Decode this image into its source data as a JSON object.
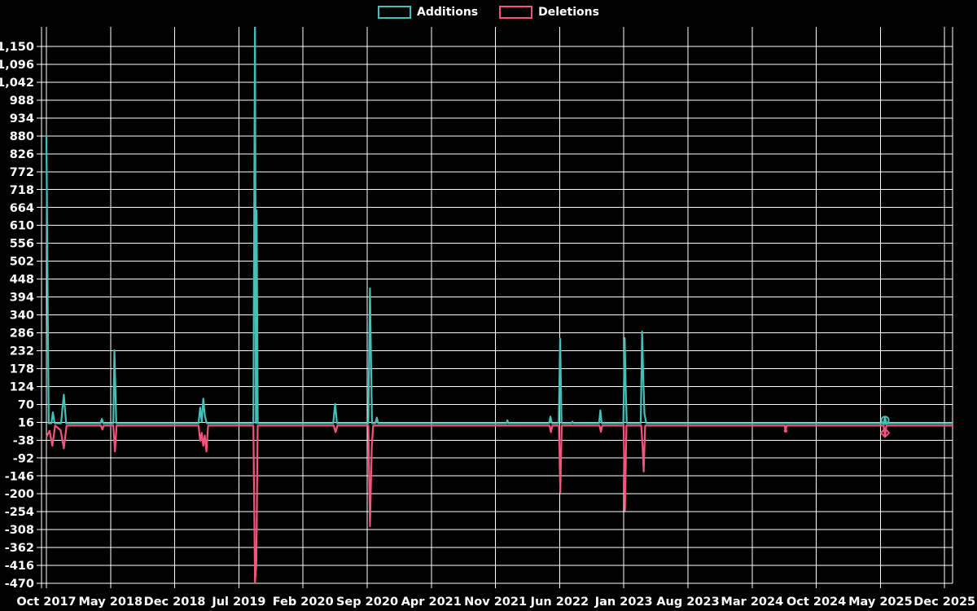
{
  "legend": {
    "items": [
      {
        "label": "Additions",
        "color": "#45c0b8"
      },
      {
        "label": "Deletions",
        "color": "#f4547d"
      }
    ]
  },
  "chart_data": {
    "type": "line",
    "title": "",
    "xlabel": "",
    "ylabel": "",
    "x_unit": "months since Oct 2017",
    "x_tick_labels": [
      "Oct 2017",
      "May 2018",
      "Dec 2018",
      "Jul 2019",
      "Feb 2020",
      "Sep 2020",
      "Apr 2021",
      "Nov 2021",
      "Jun 2022",
      "Jan 2023",
      "Aug 2023",
      "Mar 2024",
      "Oct 2024",
      "May 2025",
      "Dec 2025"
    ],
    "x_tick_month_step": 7,
    "y_tick_labels": [
      "1,150",
      "1,096",
      "1,042",
      "988",
      "934",
      "880",
      "826",
      "772",
      "718",
      "664",
      "610",
      "556",
      "502",
      "448",
      "394",
      "340",
      "286",
      "232",
      "178",
      "124",
      "70",
      "16",
      "-38",
      "-92",
      "-146",
      "-200",
      "-254",
      "-308",
      "-362",
      "-416",
      "-470"
    ],
    "ylim": [
      -492,
      1210
    ],
    "grid": true,
    "legend_position": "top-center",
    "colors": {
      "background": "#000000",
      "grid": "#ffffff",
      "text": "#ffffff"
    },
    "series": [
      {
        "name": "Additions",
        "color": "#45c0b8",
        "points": [
          [
            0,
            880
          ],
          [
            0.25,
            13
          ],
          [
            0.55,
            13
          ],
          [
            0.7,
            46
          ],
          [
            0.9,
            13
          ],
          [
            1.6,
            13
          ],
          [
            1.9,
            99
          ],
          [
            2.15,
            13
          ],
          [
            5.9,
            13
          ],
          [
            6.05,
            26
          ],
          [
            6.2,
            13
          ],
          [
            7.3,
            13
          ],
          [
            7.42,
            233
          ],
          [
            7.5,
            150
          ],
          [
            7.62,
            13
          ],
          [
            16.6,
            13
          ],
          [
            16.78,
            60
          ],
          [
            16.95,
            18
          ],
          [
            17.12,
            87
          ],
          [
            17.3,
            34
          ],
          [
            17.5,
            13
          ],
          [
            22.58,
            13
          ],
          [
            22.76,
            1240
          ],
          [
            22.86,
            13
          ],
          [
            22.94,
            655
          ],
          [
            23.06,
            13
          ],
          [
            31.3,
            13
          ],
          [
            31.5,
            71
          ],
          [
            31.7,
            13
          ],
          [
            35.12,
            13
          ],
          [
            35.3,
            420
          ],
          [
            35.4,
            238
          ],
          [
            35.52,
            13
          ],
          [
            35.9,
            13
          ],
          [
            36.05,
            30
          ],
          [
            36.2,
            13
          ],
          [
            50.2,
            13
          ],
          [
            50.3,
            22
          ],
          [
            50.4,
            13
          ],
          [
            54.85,
            13
          ],
          [
            55.0,
            33
          ],
          [
            55.15,
            13
          ],
          [
            55.9,
            13
          ],
          [
            56.05,
            268
          ],
          [
            56.2,
            13
          ],
          [
            57.3,
            13
          ],
          [
            57.4,
            18
          ],
          [
            57.5,
            13
          ],
          [
            60.3,
            13
          ],
          [
            60.44,
            52
          ],
          [
            60.58,
            13
          ],
          [
            62.95,
            13
          ],
          [
            63.1,
            270
          ],
          [
            63.2,
            122
          ],
          [
            63.32,
            13
          ],
          [
            64.85,
            13
          ],
          [
            65.0,
            290
          ],
          [
            65.12,
            150
          ],
          [
            65.25,
            42
          ],
          [
            65.45,
            13
          ],
          [
            91.35,
            13
          ],
          [
            91.5,
            30
          ],
          [
            91.65,
            13
          ],
          [
            98.9,
            13
          ]
        ]
      },
      {
        "name": "Deletions",
        "color": "#f4547d",
        "points": [
          [
            0,
            -28
          ],
          [
            0.35,
            -10
          ],
          [
            0.65,
            -55
          ],
          [
            0.95,
            6
          ],
          [
            1.55,
            -8
          ],
          [
            1.9,
            -63
          ],
          [
            2.2,
            6
          ],
          [
            5.95,
            6
          ],
          [
            6.1,
            -6
          ],
          [
            6.25,
            6
          ],
          [
            7.3,
            6
          ],
          [
            7.48,
            -72
          ],
          [
            7.66,
            6
          ],
          [
            16.6,
            6
          ],
          [
            16.78,
            -40
          ],
          [
            16.95,
            -16
          ],
          [
            17.12,
            -55
          ],
          [
            17.28,
            -24
          ],
          [
            17.46,
            -72
          ],
          [
            17.64,
            6
          ],
          [
            22.58,
            6
          ],
          [
            22.76,
            -468
          ],
          [
            22.9,
            -415
          ],
          [
            23.05,
            6
          ],
          [
            31.35,
            6
          ],
          [
            31.55,
            -14
          ],
          [
            31.75,
            6
          ],
          [
            35.12,
            6
          ],
          [
            35.3,
            -298
          ],
          [
            35.5,
            -60
          ],
          [
            35.65,
            6
          ],
          [
            54.9,
            6
          ],
          [
            55.05,
            -14
          ],
          [
            55.2,
            6
          ],
          [
            55.92,
            6
          ],
          [
            56.07,
            -195
          ],
          [
            56.22,
            6
          ],
          [
            60.35,
            6
          ],
          [
            60.5,
            -13
          ],
          [
            60.65,
            6
          ],
          [
            62.97,
            6
          ],
          [
            63.12,
            -250
          ],
          [
            63.28,
            6
          ],
          [
            64.9,
            6
          ],
          [
            65.05,
            -59
          ],
          [
            65.17,
            -133
          ],
          [
            65.33,
            6
          ],
          [
            80.55,
            6
          ],
          [
            80.65,
            -12
          ],
          [
            80.75,
            6
          ],
          [
            91.35,
            6
          ],
          [
            91.5,
            -26
          ],
          [
            91.65,
            6
          ],
          [
            98.9,
            6
          ]
        ]
      }
    ],
    "markers": [
      {
        "shape": "circle",
        "series": "Additions",
        "color": "#45c0b8",
        "m": 91.5,
        "v": 22,
        "r": 4.5
      },
      {
        "shape": "diamond",
        "series": "Deletions",
        "color": "#f4547d",
        "m": 91.5,
        "v": -16,
        "r": 5
      },
      {
        "shape": "dot",
        "series": "Deletions",
        "color": "#f4547d",
        "m": 80.65,
        "v": -10,
        "r": 2.2
      }
    ]
  }
}
